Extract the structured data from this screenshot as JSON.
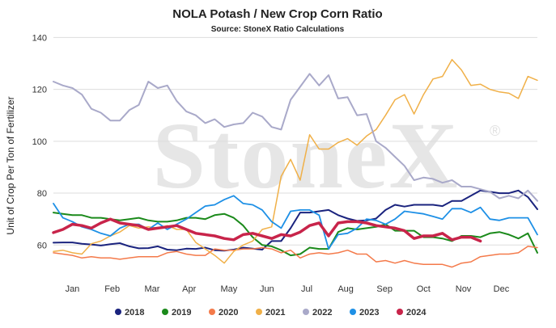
{
  "chart_data": {
    "type": "line",
    "title": "NOLA Potash / New Crop Corn Ratio",
    "subtitle": "Source: StoneX Ratio Calculations",
    "ylabel": "Unit of Crop Per Ton of Fertilizer",
    "xlabel": "",
    "watermark": "StoneX",
    "ylim": [
      47,
      142
    ],
    "yticks": [
      60,
      80,
      100,
      120,
      140
    ],
    "xlim": [
      0,
      51
    ],
    "month_ticks": [
      {
        "label": "Jan",
        "x": 2
      },
      {
        "label": "Feb",
        "x": 6.2
      },
      {
        "label": "Mar",
        "x": 10.4
      },
      {
        "label": "Apr",
        "x": 14.3
      },
      {
        "label": "May",
        "x": 18.5
      },
      {
        "label": "Jun",
        "x": 22.5
      },
      {
        "label": "Jul",
        "x": 26.7
      },
      {
        "label": "Aug",
        "x": 30.8
      },
      {
        "label": "Sep",
        "x": 34.9
      },
      {
        "label": "Oct",
        "x": 39
      },
      {
        "label": "Nov",
        "x": 43.2
      },
      {
        "label": "Dec",
        "x": 47.2
      }
    ],
    "grid": "horizontal",
    "legend_position": "bottom",
    "series": [
      {
        "name": "2018",
        "color": "#1a237e",
        "width": 2,
        "values": [
          60.9,
          61.0,
          61.0,
          60.5,
          60.2,
          59.8,
          60.3,
          60.7,
          59.5,
          58.7,
          58.8,
          59.5,
          58.2,
          58.0,
          58.6,
          58.5,
          59.0,
          58.0,
          57.8,
          58.2,
          59.0,
          58.6,
          58.2,
          61.5,
          61.5,
          66.5,
          72.5,
          72.5,
          73.0,
          73.5,
          71.5,
          70.2,
          69.3,
          69.5,
          70.2,
          73.5,
          75.5,
          74.8,
          75.5,
          75.5,
          75.5,
          75.0,
          77.0,
          77.0,
          79.0,
          81.0,
          80.5,
          80.0,
          80.0,
          81.0,
          78.5,
          73.8
        ]
      },
      {
        "name": "2019",
        "color": "#1b8a1b",
        "width": 2,
        "values": [
          72.5,
          72.0,
          71.5,
          71.5,
          70.5,
          70.5,
          70.0,
          69.5,
          70.0,
          70.5,
          69.5,
          69.0,
          69.0,
          69.5,
          70.5,
          70.5,
          70.0,
          71.5,
          72.0,
          70.5,
          67.5,
          63.0,
          60.0,
          59.5,
          58.0,
          56.0,
          56.5,
          59.0,
          58.5,
          58.5,
          65.0,
          66.5,
          66.0,
          66.5,
          67.0,
          68.0,
          65.5,
          65.5,
          65.5,
          63.0,
          63.0,
          62.5,
          61.5,
          63.5,
          63.5,
          63.0,
          64.5,
          65.0,
          64.0,
          62.5,
          64.5,
          57.0
        ]
      },
      {
        "name": "2020",
        "color": "#f47a4a",
        "width": 1.5,
        "values": [
          57.0,
          56.5,
          56.0,
          55.0,
          55.5,
          55.0,
          55.0,
          54.5,
          55.0,
          55.5,
          55.5,
          55.5,
          57.0,
          57.5,
          56.5,
          56.0,
          56.0,
          58.5,
          58.0,
          58.0,
          58.5,
          58.5,
          59.0,
          58.5,
          57.0,
          58.0,
          55.0,
          56.5,
          57.0,
          56.5,
          57.0,
          58.0,
          56.5,
          56.5,
          53.5,
          54.0,
          53.0,
          54.0,
          53.0,
          52.5,
          52.5,
          52.5,
          51.5,
          53.0,
          53.5,
          55.5,
          56.0,
          56.5,
          56.5,
          57.0,
          59.5,
          59.0
        ]
      },
      {
        "name": "2021",
        "color": "#f0b048",
        "width": 1.5,
        "values": [
          57.5,
          58.0,
          57.0,
          56.5,
          60.5,
          61.5,
          63.5,
          65.0,
          67.5,
          66.5,
          67.0,
          66.5,
          67.5,
          66.0,
          66.0,
          61.0,
          58.5,
          56.0,
          53.0,
          57.5,
          60.0,
          61.5,
          66.0,
          67.0,
          86.5,
          93.0,
          85.0,
          102.5,
          97.0,
          97.0,
          99.5,
          101.0,
          98.5,
          102.0,
          104.5,
          110.0,
          116.0,
          118.0,
          110.5,
          118.0,
          124.0,
          125.0,
          131.5,
          127.5,
          121.5,
          122.0,
          120.0,
          119.0,
          118.5,
          116.5,
          125.0,
          123.5
        ]
      },
      {
        "name": "2022",
        "color": "#a9a9c9",
        "width": 2,
        "values": [
          123.0,
          121.5,
          120.5,
          118.0,
          112.5,
          111.0,
          108.0,
          108.0,
          112.0,
          114.0,
          123.0,
          120.5,
          121.5,
          115.5,
          111.5,
          110.0,
          107.0,
          108.5,
          105.5,
          106.5,
          107.0,
          111.0,
          109.5,
          105.5,
          104.5,
          116.0,
          121.0,
          126.0,
          121.5,
          125.5,
          116.5,
          117.0,
          110.0,
          110.5,
          100.0,
          97.5,
          94.0,
          90.5,
          85.0,
          86.0,
          85.5,
          84.0,
          85.0,
          82.5,
          82.5,
          81.5,
          80.5,
          78.0,
          79.0,
          78.0,
          81.0,
          77.0
        ]
      },
      {
        "name": "2023",
        "color": "#1e90e6",
        "width": 1.8,
        "values": [
          76.0,
          70.5,
          69.0,
          67.0,
          66.0,
          64.5,
          63.5,
          66.5,
          68.0,
          68.0,
          66.0,
          68.5,
          66.0,
          68.0,
          70.0,
          72.5,
          75.0,
          75.5,
          77.5,
          79.0,
          76.0,
          75.5,
          73.5,
          69.0,
          66.5,
          73.0,
          73.5,
          73.5,
          71.5,
          58.5,
          64.0,
          64.5,
          66.5,
          70.0,
          69.5,
          68.0,
          70.0,
          73.0,
          72.5,
          72.0,
          71.0,
          70.0,
          74.0,
          74.0,
          72.5,
          74.5,
          70.0,
          69.5,
          70.5,
          70.5,
          70.5,
          64.0
        ]
      },
      {
        "name": "2024",
        "color": "#c8244a",
        "width": 3.5,
        "values": [
          64.8,
          66.0,
          68.0,
          67.5,
          66.5,
          68.5,
          70.0,
          68.5,
          68.0,
          67.5,
          66.0,
          66.5,
          67.0,
          67.5,
          66.0,
          64.5,
          64.0,
          63.5,
          62.5,
          62.0,
          64.0,
          64.5,
          63.5,
          62.5,
          64.0,
          63.5,
          65.0,
          67.5,
          68.5,
          63.5,
          68.5,
          69.0,
          69.0,
          68.5,
          67.5,
          67.0,
          66.5,
          65.5,
          62.5,
          63.5,
          63.5,
          64.5,
          62.0,
          63.0,
          63.0,
          61.5
        ]
      }
    ]
  }
}
